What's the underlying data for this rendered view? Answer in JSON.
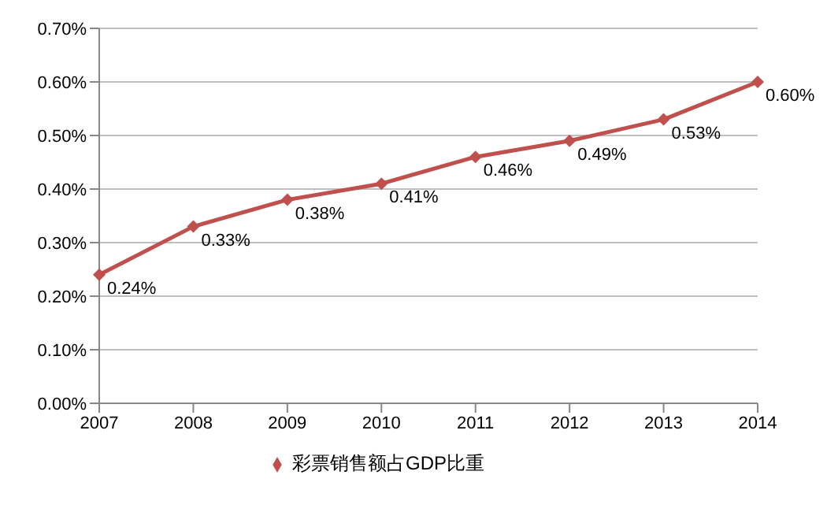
{
  "chart_data": {
    "type": "line",
    "categories": [
      "2007",
      "2008",
      "2009",
      "2010",
      "2011",
      "2012",
      "2013",
      "2014"
    ],
    "series": [
      {
        "name": "彩票销售额占GDP比重",
        "color": "#c0504d",
        "values": [
          0.24,
          0.33,
          0.38,
          0.41,
          0.46,
          0.49,
          0.53,
          0.6
        ],
        "value_labels": [
          "0.24%",
          "0.33%",
          "0.38%",
          "0.41%",
          "0.46%",
          "0.49%",
          "0.53%",
          "0.60%"
        ]
      }
    ],
    "ylim": [
      0,
      0.7
    ],
    "yticks": [
      {
        "value": 0,
        "label": "0.00%"
      },
      {
        "value": 0.1,
        "label": "0.10%"
      },
      {
        "value": 0.2,
        "label": "0.20%"
      },
      {
        "value": 0.3,
        "label": "0.30%"
      },
      {
        "value": 0.4,
        "label": "0.40%"
      },
      {
        "value": 0.5,
        "label": "0.50%"
      },
      {
        "value": 0.6,
        "label": "0.60%"
      },
      {
        "value": 0.7,
        "label": "0.70%"
      }
    ],
    "grid": "y",
    "legend": "bottom",
    "marker": "diamond",
    "line_style": "solid"
  }
}
